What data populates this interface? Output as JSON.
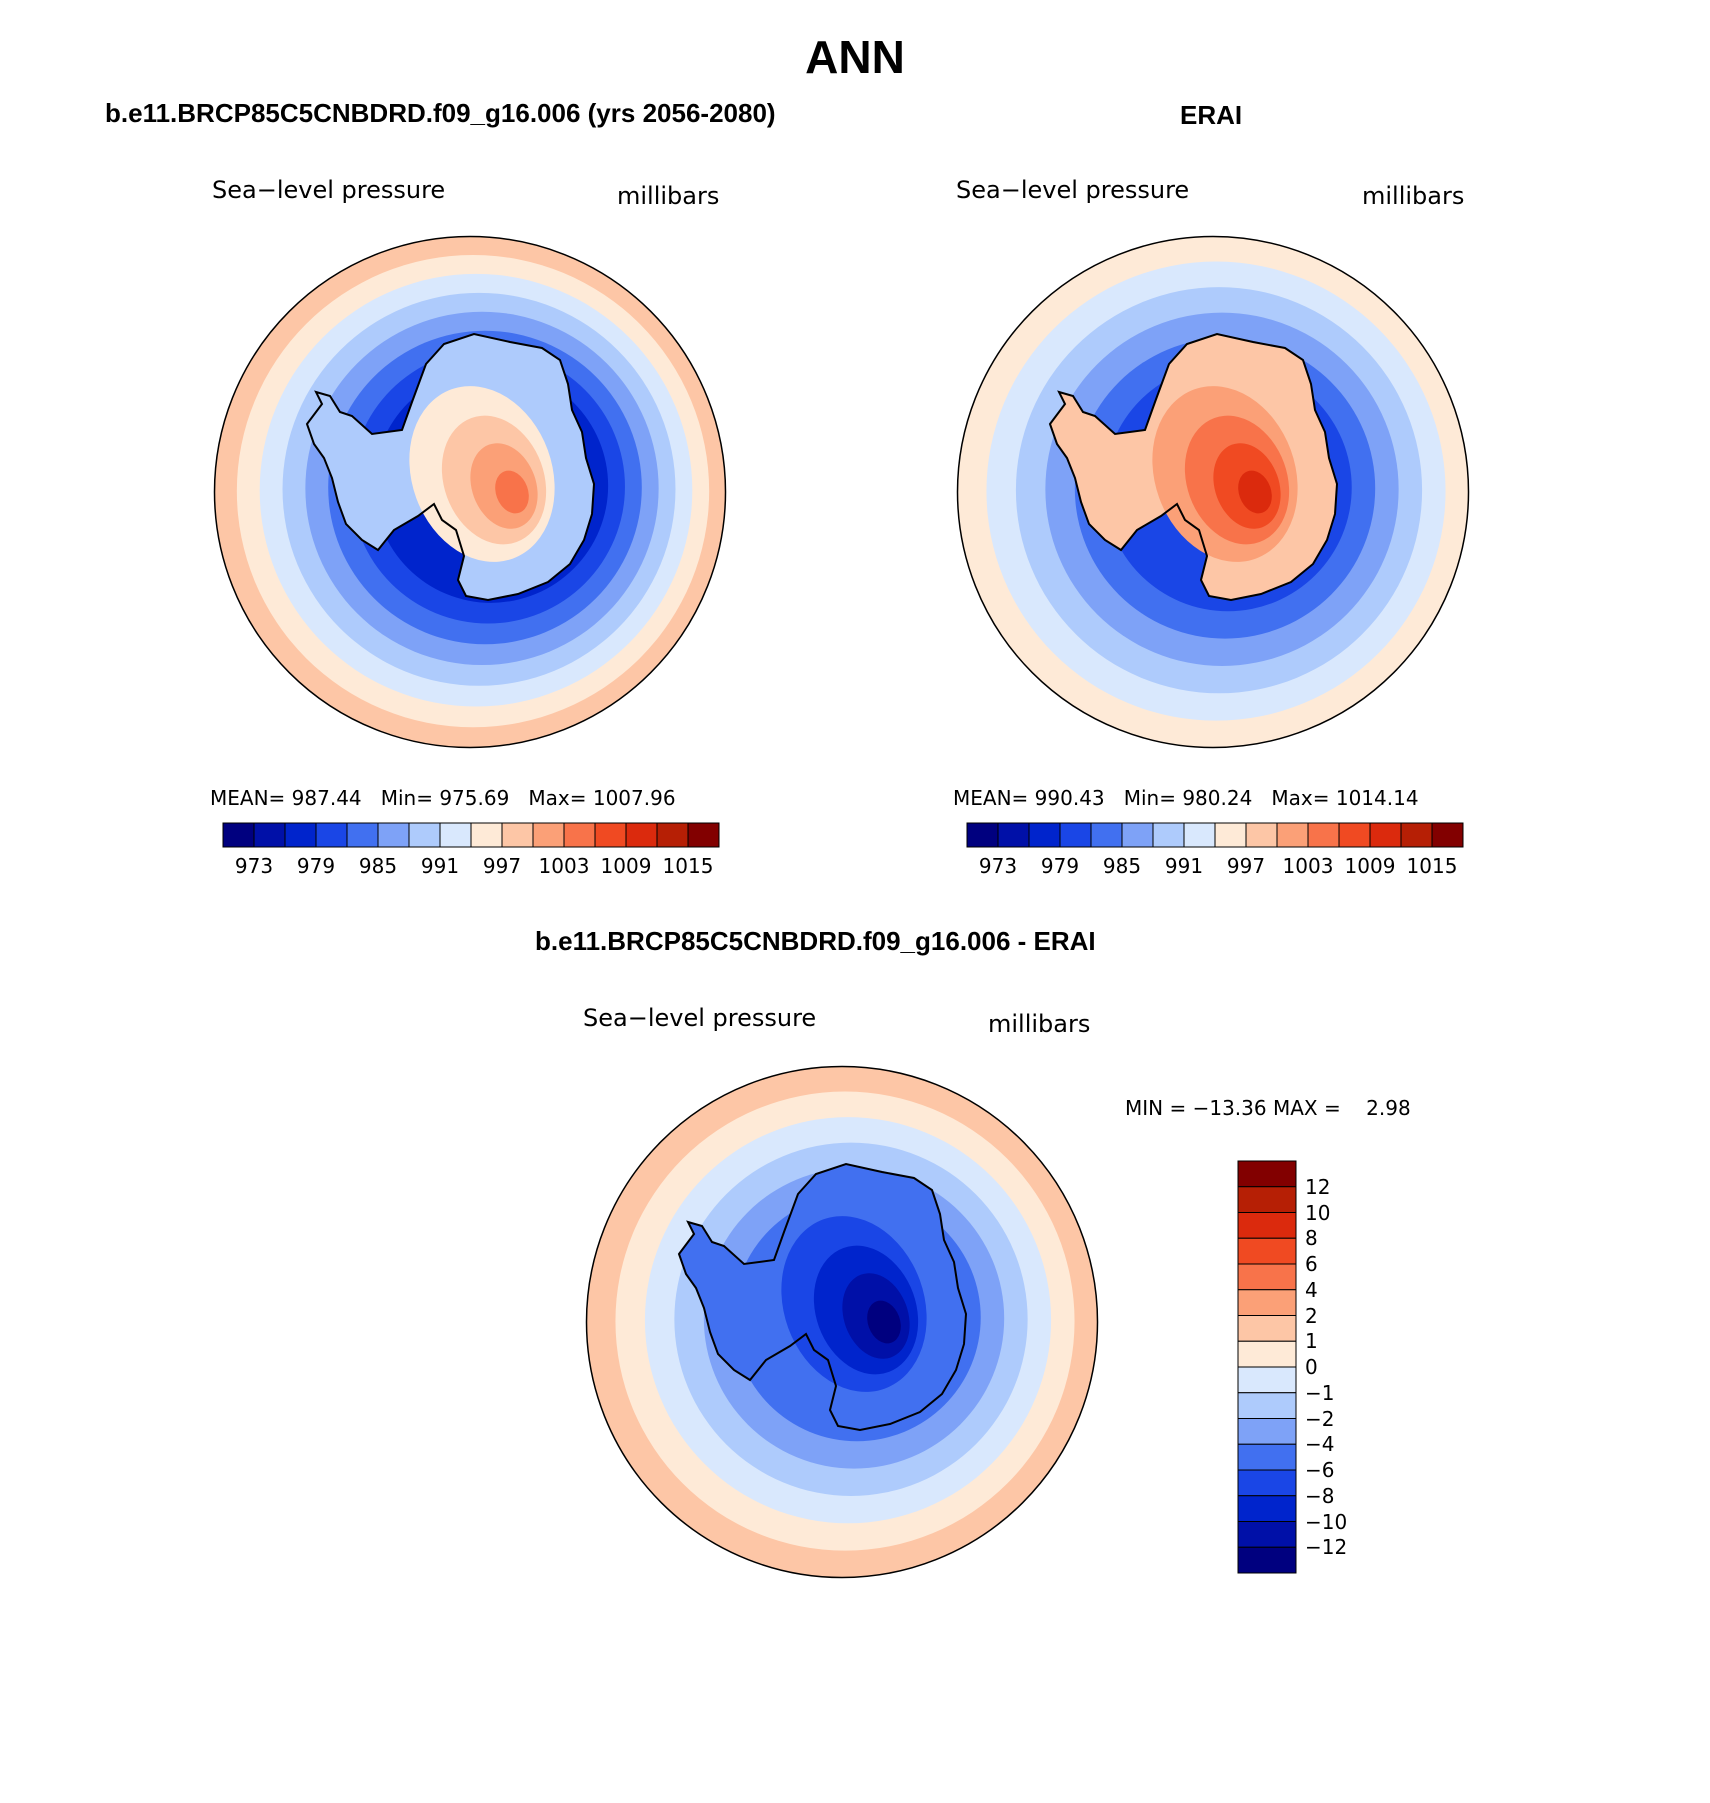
{
  "page": {
    "title": "ANN"
  },
  "panels": [
    {
      "title": "b.e11.BRCP85C5CNBDRD.f09_g16.006 (yrs 2056-2080)",
      "variable": "Sea−level pressure",
      "units": "millibars",
      "stats": {
        "mean_label": "MEAN=",
        "mean": "987.44",
        "min_label": "Min=",
        "min": "975.69",
        "max_label": "Max=",
        "max": "1007.96"
      }
    },
    {
      "title": "ERAI",
      "variable": "Sea−level pressure",
      "units": "millibars",
      "stats": {
        "mean_label": "MEAN=",
        "mean": "990.43",
        "min_label": "Min=",
        "min": "980.24",
        "max_label": "Max=",
        "max": "1014.14"
      }
    },
    {
      "title": "b.e11.BRCP85C5CNBDRD.f09_g16.006 - ERAI",
      "variable": "Sea−level pressure",
      "units": "millibars",
      "stats": {
        "text": "MIN = −13.36 MAX =    2.98"
      }
    }
  ],
  "colorbar_abs": {
    "labels": [
      "973",
      "979",
      "985",
      "991",
      "997",
      "1003",
      "1009",
      "1015"
    ],
    "colors": [
      "#00007f",
      "#0010a8",
      "#0024cc",
      "#1a46e6",
      "#4170f0",
      "#7ea2f7",
      "#aecbfc",
      "#d9e8fd",
      "#feead7",
      "#fdc6a6",
      "#fba077",
      "#f8734a",
      "#f04a22",
      "#db2a0d",
      "#b61f05",
      "#820000"
    ]
  },
  "colorbar_diff": {
    "labels": [
      "12",
      "10",
      "8",
      "6",
      "4",
      "2",
      "1",
      "0",
      "−1",
      "−2",
      "−4",
      "−6",
      "−8",
      "−10",
      "−12"
    ],
    "colors": [
      "#820000",
      "#b61f05",
      "#db2a0d",
      "#f04a22",
      "#f8734a",
      "#fba077",
      "#fdc6a6",
      "#feead7",
      "#d9e8fd",
      "#aecbfc",
      "#7ea2f7",
      "#4170f0",
      "#1a46e6",
      "#0024cc",
      "#0010a8",
      "#00007f"
    ]
  },
  "maps": [
    {
      "name": "model-map",
      "ring_colors": [
        "#fdc6a6",
        "#feead7",
        "#d9e8fd",
        "#aecbfc",
        "#7ea2f7",
        "#4170f0",
        "#1a46e6",
        "#0024cc"
      ],
      "continent_fill": "#aecbfc",
      "interior_colors": [
        "#feead7",
        "#fdc6a6",
        "#fba077",
        "#f8734a"
      ]
    },
    {
      "name": "erai-map",
      "ring_colors": [
        "#feead7",
        "#d9e8fd",
        "#aecbfc",
        "#7ea2f7",
        "#4170f0",
        "#1a46e6"
      ],
      "continent_fill": "#fdc6a6",
      "interior_colors": [
        "#fba077",
        "#f8734a",
        "#f04a22",
        "#db2a0d"
      ]
    },
    {
      "name": "diff-map",
      "ring_colors": [
        "#fdc6a6",
        "#feead7",
        "#d9e8fd",
        "#aecbfc",
        "#7ea2f7",
        "#4170f0"
      ],
      "continent_fill": "#4170f0",
      "interior_colors": [
        "#1a46e6",
        "#0024cc",
        "#0010a8",
        "#00007f"
      ]
    }
  ]
}
